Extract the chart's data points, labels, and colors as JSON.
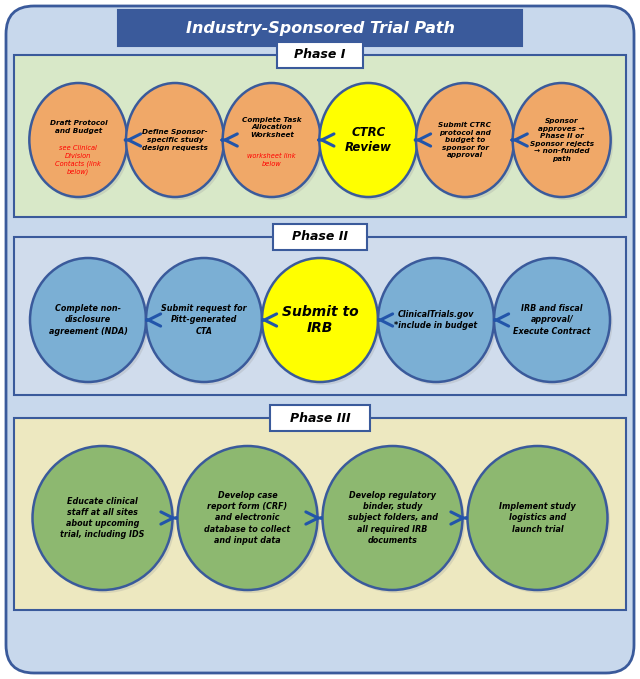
{
  "title": "Industry-Sponsored Trial Path",
  "title_color": "#FFFFFF",
  "title_bg": "#3A5A9B",
  "outer_bg": "#C8D8EC",
  "phase1_bg": "#D8E8C8",
  "phase2_bg": "#D0DCEC",
  "phase3_bg": "#EDE8C0",
  "border_color": "#3A5A9B",
  "arrow_color": "#2255AA",
  "phase1_nodes": [
    {
      "main": "Draft Protocol\nand Budget",
      "red": "see Clinical\nDivision\nContacts (link\nbelow)",
      "color": "#F0A868"
    },
    {
      "main": "Define Sponsor-\nspecific study\ndesign requests",
      "red": "",
      "color": "#F0A868"
    },
    {
      "main": "Complete Task\nAllocation\nWorksheet",
      "red": "worksheet link\nbelow",
      "color": "#F0A868"
    },
    {
      "main": "CTRC\nReview",
      "red": "",
      "color": "#FFFF00"
    },
    {
      "main": "Submit CTRC\nprotocol and\nbudget to\nsponsor for\napproval",
      "red": "",
      "color": "#F0A868"
    },
    {
      "main": "Sponsor\napproves →\nPhase II or\nSponsor rejects\n→ non-funded\npath",
      "red": "",
      "color": "#F0A868"
    }
  ],
  "phase2_nodes": [
    {
      "main": "Complete non-\ndisclosure\nagreement (NDA)",
      "color": "#7BAFD4"
    },
    {
      "main": "Submit request for\nPitt-generated\nCTA",
      "color": "#7BAFD4"
    },
    {
      "main": "Submit to\nIRB",
      "color": "#FFFF00"
    },
    {
      "main": "ClinicalTrials.gov\n*include in budget",
      "color": "#7BAFD4"
    },
    {
      "main": "IRB and fiscal\napproval/\nExecute Contract",
      "color": "#7BAFD4"
    }
  ],
  "phase3_nodes": [
    {
      "main": "Educate clinical\nstaff at all sites\nabout upcoming\ntrial, including IDS",
      "color": "#8DB870"
    },
    {
      "main": "Develop case\nreport form (CRF)\nand electronic\ndatabase to collect\nand input data",
      "color": "#8DB870"
    },
    {
      "main": "Develop regulatory\nbinder, study\nsubject folders, and\nall required IRB\ndocuments",
      "color": "#8DB870"
    },
    {
      "main": "Implement study\nlogistics and\nlaunch trial",
      "color": "#8DB870"
    }
  ]
}
